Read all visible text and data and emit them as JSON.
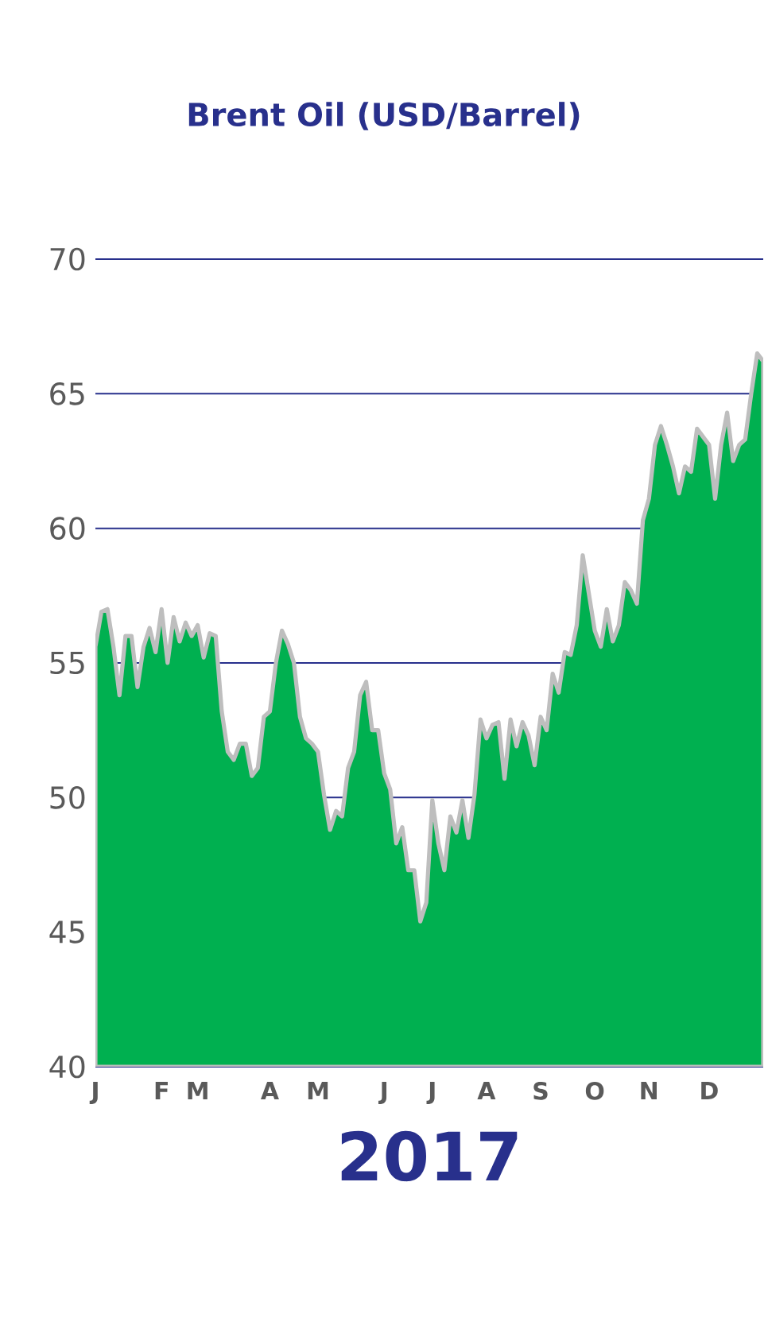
{
  "chart_data": {
    "type": "area",
    "title": "Brent Oil (USD/Barrel)",
    "xlabel": "2017",
    "categories": [
      "J",
      null,
      null,
      null,
      null,
      null,
      null,
      null,
      null,
      null,
      null,
      "F",
      null,
      null,
      null,
      null,
      null,
      "M",
      null,
      null,
      null,
      null,
      null,
      null,
      null,
      null,
      null,
      null,
      null,
      "A",
      null,
      null,
      null,
      null,
      null,
      null,
      null,
      "M",
      null,
      null,
      null,
      null,
      null,
      null,
      null,
      null,
      null,
      null,
      "J",
      null,
      null,
      null,
      null,
      null,
      null,
      null,
      "J",
      null,
      null,
      null,
      null,
      null,
      null,
      null,
      null,
      "A",
      null,
      null,
      null,
      null,
      null,
      null,
      null,
      null,
      "S",
      null,
      null,
      null,
      null,
      null,
      null,
      null,
      null,
      "O",
      null,
      null,
      null,
      null,
      null,
      null,
      null,
      null,
      "N",
      null,
      null,
      null,
      null,
      null,
      null,
      null,
      null,
      null,
      "D",
      null,
      null,
      null,
      null,
      null,
      null,
      null,
      null,
      null
    ],
    "series": [
      {
        "color": "#00b050",
        "values": [
          55.6,
          56.9,
          57.0,
          55.6,
          53.8,
          56.0,
          56.0,
          54.1,
          55.6,
          56.3,
          55.4,
          57.0,
          55.0,
          56.7,
          55.8,
          56.5,
          56.0,
          56.4,
          55.2,
          56.1,
          56.0,
          53.2,
          51.7,
          51.4,
          52.0,
          52.0,
          50.8,
          51.1,
          53.0,
          53.2,
          55.0,
          56.2,
          55.7,
          55.0,
          53.0,
          52.2,
          52.0,
          51.7,
          50.1,
          48.8,
          49.5,
          49.3,
          51.1,
          51.7,
          53.8,
          54.3,
          52.5,
          52.5,
          50.9,
          50.3,
          48.3,
          48.9,
          47.3,
          47.3,
          45.4,
          46.1,
          49.9,
          48.3,
          47.3,
          49.3,
          48.7,
          49.9,
          48.5,
          50.1,
          52.9,
          52.2,
          52.7,
          52.8,
          50.7,
          52.9,
          51.9,
          52.8,
          52.3,
          51.2,
          53.0,
          52.5,
          54.6,
          53.9,
          55.4,
          55.3,
          56.4,
          59.0,
          57.6,
          56.2,
          55.6,
          57.0,
          55.8,
          56.4,
          58.0,
          57.7,
          57.2,
          60.3,
          61.1,
          63.1,
          63.8,
          63.1,
          62.3,
          61.3,
          62.3,
          62.1,
          63.7,
          63.4,
          63.1,
          61.1,
          63.1,
          64.3,
          62.5,
          63.1,
          63.3,
          65.0,
          66.5,
          66.2
        ]
      }
    ],
    "ylim": [
      40,
      70
    ],
    "yticks": [
      40,
      45,
      50,
      55,
      60,
      65,
      70
    ],
    "grid": "y"
  }
}
